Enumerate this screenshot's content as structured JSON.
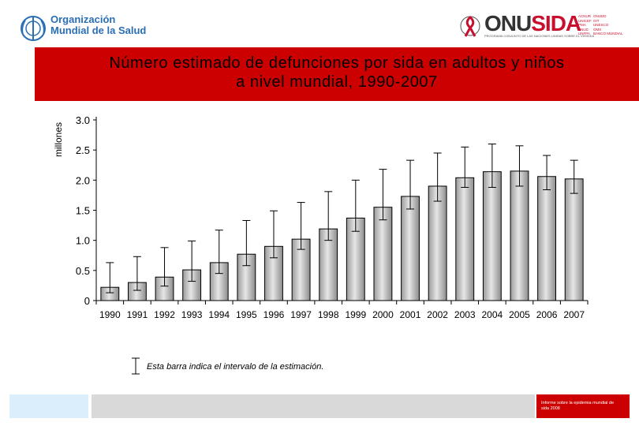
{
  "header": {
    "who_name_line1": "Organización",
    "who_name_line2": "Mundial de la Salud",
    "unaids_name_part1": "ONU",
    "unaids_name_part2": "SIDA",
    "unaids_subtitle": "PROGRAMA CONJUNTO DE LAS NACIONES UNIDAS SOBRE EL VIH/SIDA",
    "unaids_col1": [
      "ACNUR",
      "UNICEF",
      "PMA",
      "PNUD",
      "UNFPA"
    ],
    "unaids_col2": [
      "ONUDD",
      "OIT",
      "UNESCO",
      "OMS",
      "BANCO MUNDIAL"
    ]
  },
  "title": {
    "line1": "Número estimado de defunciones por sida en adultos y niños",
    "line2": "a nivel mundial, 1990-2007"
  },
  "chart_data": {
    "type": "bar",
    "title": "Número estimado de defunciones por sida en adultos y niños a nivel mundial, 1990-2007",
    "xlabel": "",
    "ylabel": "millones",
    "ylim": [
      0,
      3.0
    ],
    "yticks": [
      "0",
      "0.5",
      "1.0",
      "1.5",
      "2.0",
      "2.5",
      "3.0"
    ],
    "ytick_values": [
      0,
      0.5,
      1.0,
      1.5,
      2.0,
      2.5,
      3.0
    ],
    "categories": [
      "1990",
      "1991",
      "1992",
      "1993",
      "1994",
      "1995",
      "1996",
      "1997",
      "1998",
      "1999",
      "2000",
      "2001",
      "2002",
      "2003",
      "2004",
      "2005",
      "2006",
      "2007"
    ],
    "values": [
      0.22,
      0.3,
      0.39,
      0.51,
      0.63,
      0.77,
      0.9,
      1.02,
      1.19,
      1.37,
      1.55,
      1.73,
      1.9,
      2.04,
      2.14,
      2.15,
      2.06,
      2.02
    ],
    "error_low": [
      0.13,
      0.17,
      0.24,
      0.32,
      0.45,
      0.58,
      0.71,
      0.85,
      1.0,
      1.15,
      1.34,
      1.52,
      1.65,
      1.88,
      1.88,
      1.9,
      1.84,
      1.78
    ],
    "error_high": [
      0.63,
      0.73,
      0.88,
      0.99,
      1.17,
      1.33,
      1.49,
      1.63,
      1.81,
      2.0,
      2.18,
      2.33,
      2.45,
      2.55,
      2.6,
      2.57,
      2.41,
      2.33
    ],
    "grid": false,
    "bar_color": "#bfbfbf",
    "legend_text": "Esta barra indica el intervalo de la estimación."
  },
  "footer": {
    "report_text": "Informe sobre la epidemia mundial de sida 2008"
  },
  "colors": {
    "accent": "#cc0000",
    "footer_left": "#dbeefc",
    "footer_mid": "#d9d9d9"
  }
}
